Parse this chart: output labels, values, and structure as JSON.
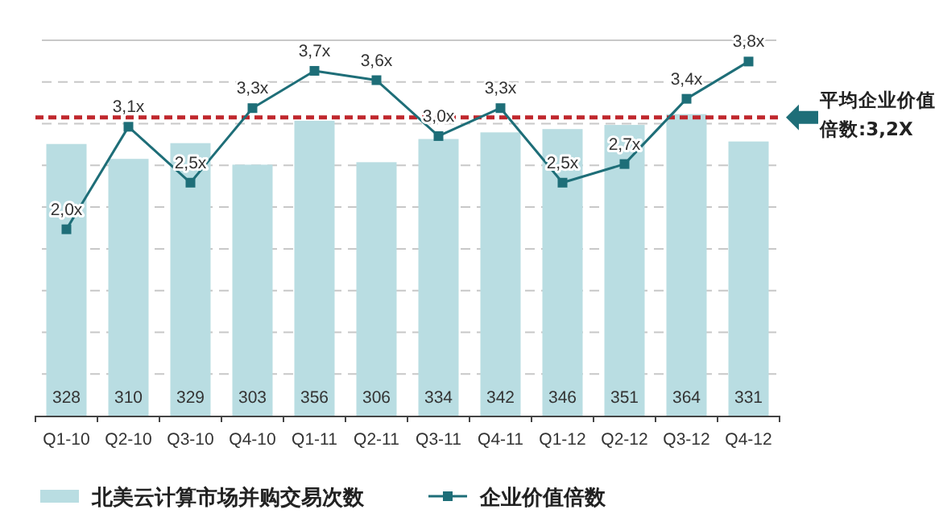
{
  "chart_data": {
    "type": "bar",
    "categories": [
      "Q1-10",
      "Q2-10",
      "Q3-10",
      "Q4-10",
      "Q1-11",
      "Q2-11",
      "Q3-11",
      "Q4-11",
      "Q1-12",
      "Q2-12",
      "Q3-12",
      "Q4-12"
    ],
    "series": [
      {
        "name": "北美云计算市场并购交易次数",
        "color": "#b9dde2",
        "values": [
          328,
          310,
          329,
          303,
          356,
          306,
          334,
          342,
          346,
          351,
          364,
          331
        ]
      },
      {
        "name": "企业价值倍数",
        "type": "line",
        "axis": "y2",
        "color": "#1e6e78",
        "marker": "square",
        "values": [
          2.0,
          3.1,
          2.5,
          3.3,
          3.7,
          3.6,
          3.0,
          3.3,
          2.5,
          2.7,
          3.4,
          3.8
        ],
        "value_labels": [
          "2,0x",
          "3,1x",
          "2,5x",
          "3,3x",
          "3,7x",
          "3,6x",
          "3,0x",
          "3,3x",
          "2,5x",
          "2,7x",
          "3,4x",
          "3,8x"
        ]
      }
    ],
    "data_labels": true,
    "ref_lines": [
      {
        "axis": "y2",
        "value": 3.2,
        "label": "平均企业价值倍数:3,2X",
        "color": "#c0272d",
        "line_style": "dashed"
      }
    ],
    "grid": "y",
    "legend": "bottom",
    "tick_labels": "x"
  }
}
